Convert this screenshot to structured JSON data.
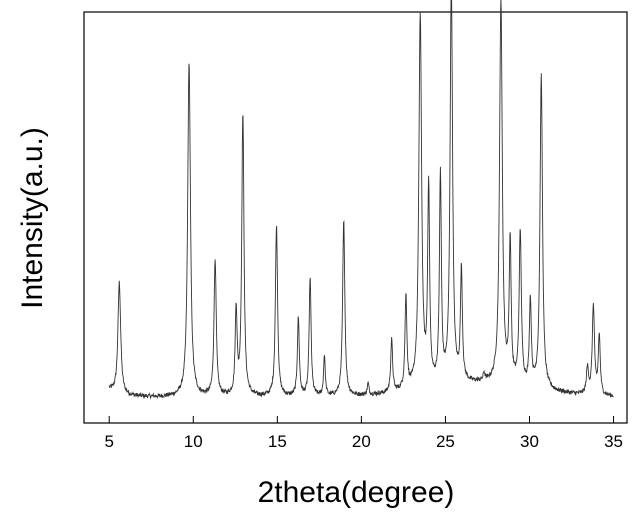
{
  "chart_data": {
    "type": "line",
    "xlabel": "2theta(degree)",
    "ylabel": "Intensity(a.u.)",
    "xlim": [
      3.5,
      35.8
    ],
    "ylim": [
      0,
      1
    ],
    "x_ticks": [
      5,
      10,
      15,
      20,
      25,
      30,
      35
    ],
    "x_tick_labels": [
      "5",
      "10",
      "15",
      "20",
      "25",
      "30",
      "35"
    ],
    "y_tick_labels_shown": false,
    "grid": false,
    "legend": "none",
    "line_color": "#333333",
    "baseline": 0.04,
    "peaks": [
      {
        "x": 5.6,
        "y": 0.3,
        "width": 0.1
      },
      {
        "x": 9.75,
        "y": 0.9,
        "width": 0.1
      },
      {
        "x": 11.3,
        "y": 0.37,
        "width": 0.08
      },
      {
        "x": 12.55,
        "y": 0.23,
        "width": 0.07
      },
      {
        "x": 12.95,
        "y": 0.76,
        "width": 0.08
      },
      {
        "x": 14.95,
        "y": 0.46,
        "width": 0.08
      },
      {
        "x": 16.25,
        "y": 0.21,
        "width": 0.07
      },
      {
        "x": 16.95,
        "y": 0.32,
        "width": 0.07
      },
      {
        "x": 17.8,
        "y": 0.11,
        "width": 0.06
      },
      {
        "x": 18.95,
        "y": 0.47,
        "width": 0.08
      },
      {
        "x": 20.4,
        "y": 0.03,
        "width": 0.06
      },
      {
        "x": 21.8,
        "y": 0.14,
        "width": 0.07
      },
      {
        "x": 22.65,
        "y": 0.25,
        "width": 0.07
      },
      {
        "x": 23.5,
        "y": 1.0,
        "width": 0.1
      },
      {
        "x": 24.0,
        "y": 0.53,
        "width": 0.07
      },
      {
        "x": 24.7,
        "y": 0.56,
        "width": 0.07
      },
      {
        "x": 25.35,
        "y": 1.08,
        "width": 0.09
      },
      {
        "x": 25.95,
        "y": 0.3,
        "width": 0.07
      },
      {
        "x": 27.3,
        "y": 0.02,
        "width": 0.06
      },
      {
        "x": 28.3,
        "y": 1.03,
        "width": 0.1
      },
      {
        "x": 28.85,
        "y": 0.38,
        "width": 0.07
      },
      {
        "x": 29.45,
        "y": 0.41,
        "width": 0.08
      },
      {
        "x": 30.05,
        "y": 0.23,
        "width": 0.07
      },
      {
        "x": 30.7,
        "y": 0.84,
        "width": 0.09
      },
      {
        "x": 33.45,
        "y": 0.07,
        "width": 0.08
      },
      {
        "x": 33.8,
        "y": 0.24,
        "width": 0.08
      },
      {
        "x": 34.15,
        "y": 0.16,
        "width": 0.07
      }
    ]
  }
}
